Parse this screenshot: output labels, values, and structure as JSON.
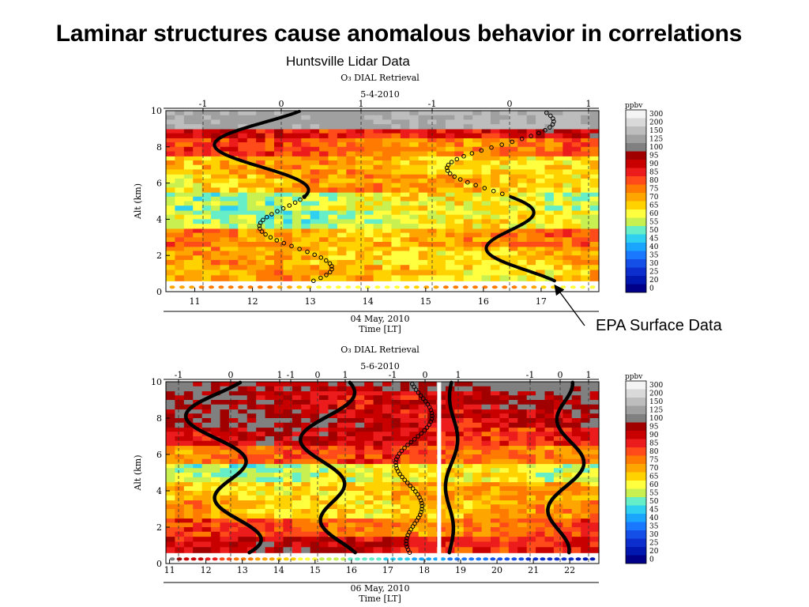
{
  "slide": {
    "title": "Laminar structures cause anomalous behavior in correlations",
    "subtitle": "Huntsville Lidar Data",
    "annotation": "EPA Surface Data"
  },
  "colorbar": {
    "unit": "ppbv",
    "levels": [
      "300",
      "200",
      "150",
      "125",
      "100",
      "95",
      "90",
      "85",
      "80",
      "75",
      "70",
      "65",
      "60",
      "55",
      "50",
      "45",
      "40",
      "35",
      "30",
      "25",
      "20",
      "0"
    ],
    "colors": [
      "#f4f4f4",
      "#d9d9d9",
      "#bdbdbd",
      "#a0a0a0",
      "#808080",
      "#a00000",
      "#c80000",
      "#ec1c1c",
      "#ff4a1a",
      "#ff7a00",
      "#ffa500",
      "#ffd200",
      "#ffff40",
      "#c8f050",
      "#66eec8",
      "#30d0f0",
      "#1aa6ff",
      "#1a78ff",
      "#1450e8",
      "#0c2ecc",
      "#0018b0",
      "#000088"
    ]
  },
  "chart_data": [
    {
      "type": "heatmap",
      "title": "O₃ DIAL Retrieval",
      "date_label": "5-4-2010",
      "xlabel_line1": "04 May, 2010",
      "xlabel_line2": "Time [LT]",
      "ylabel": "Alt (km)",
      "xlim": [
        10.5,
        18.0
      ],
      "ylim": [
        0,
        10
      ],
      "x_ticks": [
        "11",
        "12",
        "13",
        "14",
        "15",
        "16",
        "17"
      ],
      "y_ticks": [
        "0",
        "2",
        "4",
        "6",
        "8",
        "10"
      ],
      "top_ticks": [
        "-1",
        "0",
        "1",
        "-1",
        "0",
        "1"
      ],
      "layers_ppbv": [
        {
          "alt_km": [
            0.6,
            1.5
          ],
          "value": 70
        },
        {
          "alt_km": [
            1.5,
            2.5
          ],
          "value": 70
        },
        {
          "alt_km": [
            2.5,
            3.5
          ],
          "value": 75
        },
        {
          "alt_km": [
            3.5,
            4.5
          ],
          "value": 60
        },
        {
          "alt_km": [
            4.5,
            5.5
          ],
          "value": 60
        },
        {
          "alt_km": [
            5.5,
            6.5
          ],
          "value": 70
        },
        {
          "alt_km": [
            6.5,
            7.5
          ],
          "value": 70
        },
        {
          "alt_km": [
            7.5,
            8.5
          ],
          "value": 80
        },
        {
          "alt_km": [
            8.5,
            9.0
          ],
          "value": 90
        },
        {
          "alt_km": [
            9.0,
            10.0
          ],
          "value": 150
        }
      ],
      "surface_points": 44,
      "profiles": [
        {
          "x_start": 11.0,
          "x_end": 13.85,
          "style": "solid-then-dotted"
        },
        {
          "x_start": 15.0,
          "x_end": 17.85,
          "style": "dotted-then-solid"
        }
      ]
    },
    {
      "type": "heatmap",
      "title": "O₃ DIAL Retrieval",
      "date_label": "5-6-2010",
      "xlabel_line1": "06 May, 2010",
      "xlabel_line2": "Time [LT]",
      "ylabel": "Alt (km)",
      "xlim": [
        10.9,
        22.8
      ],
      "ylim": [
        0,
        10
      ],
      "x_ticks": [
        "11",
        "12",
        "13",
        "14",
        "15",
        "16",
        "17",
        "18",
        "19",
        "20",
        "21",
        "22"
      ],
      "y_ticks": [
        "0",
        "2",
        "4",
        "6",
        "8",
        "10"
      ],
      "top_ticks": [
        "-1",
        "0",
        "1",
        "-1",
        "0",
        "1",
        "-1",
        "0",
        "1",
        "-1",
        "0",
        "1"
      ],
      "layers_ppbv": [
        {
          "alt_km": [
            0.6,
            1.5
          ],
          "value": 90
        },
        {
          "alt_km": [
            1.5,
            2.5
          ],
          "value": 80
        },
        {
          "alt_km": [
            2.5,
            3.5
          ],
          "value": 70
        },
        {
          "alt_km": [
            3.5,
            4.5
          ],
          "value": 70
        },
        {
          "alt_km": [
            4.5,
            5.5
          ],
          "value": 60
        },
        {
          "alt_km": [
            5.5,
            6.5
          ],
          "value": 80
        },
        {
          "alt_km": [
            6.5,
            7.5
          ],
          "value": 90
        },
        {
          "alt_km": [
            7.5,
            8.5
          ],
          "value": 95
        },
        {
          "alt_km": [
            8.5,
            9.5
          ],
          "value": 95
        },
        {
          "alt_km": [
            9.5,
            10.0
          ],
          "value": 100
        }
      ],
      "surface_points": 60,
      "profiles": [
        {
          "x_start": 11.1,
          "x_end": 14.0,
          "style": "solid"
        },
        {
          "x_start": 14.3,
          "x_end": 16.6,
          "style": "solid"
        },
        {
          "x_start": 17.0,
          "x_end": 18.5,
          "style": "dotted"
        },
        {
          "x_start": 18.5,
          "x_end": 19.0,
          "style": "solid"
        },
        {
          "x_start": 21.1,
          "x_end": 22.6,
          "style": "solid"
        }
      ]
    }
  ]
}
